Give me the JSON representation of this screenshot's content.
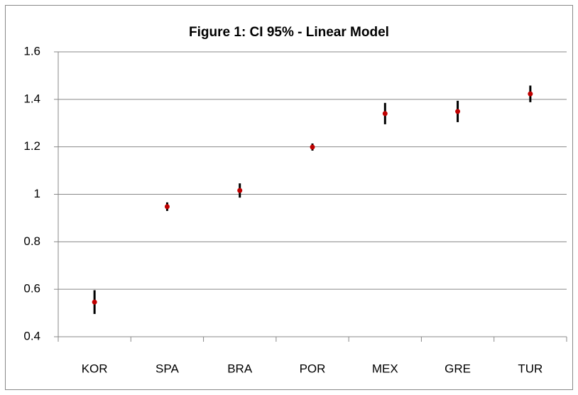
{
  "chart_data": {
    "type": "errorbar",
    "title": "Figure 1: CI 95% - Linear Model",
    "categories": [
      "KOR",
      "SPA",
      "BRA",
      "POR",
      "MEX",
      "GRE",
      "TUR"
    ],
    "values": [
      0.546,
      0.948,
      1.016,
      1.199,
      1.34,
      1.349,
      1.423
    ],
    "errors": [
      0.05,
      0.018,
      0.03,
      0.015,
      0.045,
      0.045,
      0.035
    ],
    "color": "#c00000",
    "error_color": "#000000",
    "ylim": [
      0.4,
      1.6
    ],
    "yticks": [
      0.4,
      0.6,
      0.8,
      1,
      1.2,
      1.4,
      1.6
    ],
    "grid": true
  }
}
